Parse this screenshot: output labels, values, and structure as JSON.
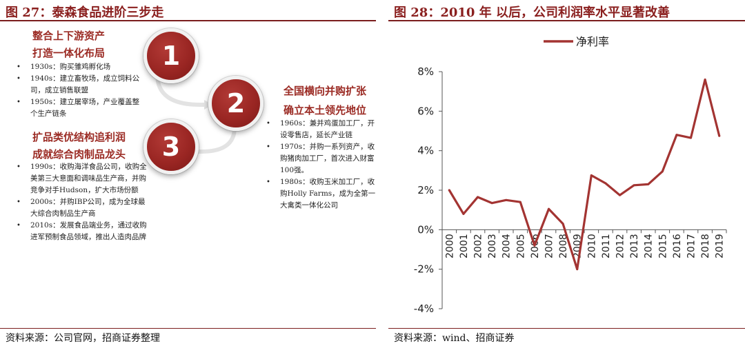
{
  "left": {
    "title": "图 27：泰森食品进阶三步走",
    "source": "资料来源：公司官网，招商证券整理",
    "stages": [
      {
        "number": "1",
        "heading_line1": "整合上下游资产",
        "heading_line2": "打造一体化布局",
        "bullets": [
          "1930s：购买雏鸡孵化场",
          "1940s：建立畜牧场，成立饲料公司，成立销售联盟",
          "1950s：建立屠宰场，产业覆盖整个生产链条"
        ]
      },
      {
        "number": "2",
        "heading_line1": "全国横向并购扩张",
        "heading_line2": "确立本土领先地位",
        "bullets": [
          "1960s：兼并鸡蛋加工厂，开设零售店，延长产业链",
          "1970s：并购一系列资产，收购猪肉加工厂，首次进入财富100强。",
          "1980s：收购玉米加工厂，收购Holly Farms，成为全第一大禽类一体化公司"
        ]
      },
      {
        "number": "3",
        "heading_line1": "扩品类优结构追利润",
        "heading_line2": "成就综合肉制品龙头",
        "bullets": [
          "1990s：收购海洋食品公司，收购全美第三大意面和调味品生产商，并购竞争对手Hudson，扩大市场份额",
          "2000s：并购IBP公司，成为全球最大综合肉制品生产商",
          "2010s：发展食品端业务，通过收购进军预制食品领域，推出人造肉品牌"
        ]
      }
    ]
  },
  "right": {
    "title": "图 28：2010 年 以后，公司利润率水平显著改善",
    "source": "资料来源：wind、招商证券",
    "colors": {
      "series": "#a33432",
      "accent": "#8a1f1e"
    }
  },
  "chart_data": {
    "type": "line",
    "title": "图 28：2010 年 以后，公司利润率水平显著改善",
    "xlabel": "",
    "ylabel": "",
    "legend_position": "top-left",
    "grid": false,
    "ylim": [
      -4,
      8
    ],
    "yticks": [
      "-4%",
      "-2%",
      "0%",
      "2%",
      "4%",
      "6%",
      "8%"
    ],
    "categories": [
      "2000",
      "2001",
      "2002",
      "2003",
      "2004",
      "2005",
      "2006",
      "2007",
      "2008",
      "2009",
      "2010",
      "2011",
      "2012",
      "2013",
      "2014",
      "2015",
      "2016",
      "2017",
      "2018",
      "2019"
    ],
    "series": [
      {
        "name": "净利率",
        "values": [
          2.0,
          0.8,
          1.65,
          1.35,
          1.5,
          1.4,
          -0.8,
          1.05,
          0.3,
          -2.0,
          2.75,
          2.35,
          1.75,
          2.25,
          2.3,
          2.95,
          4.8,
          4.65,
          7.6,
          4.75
        ]
      }
    ]
  }
}
